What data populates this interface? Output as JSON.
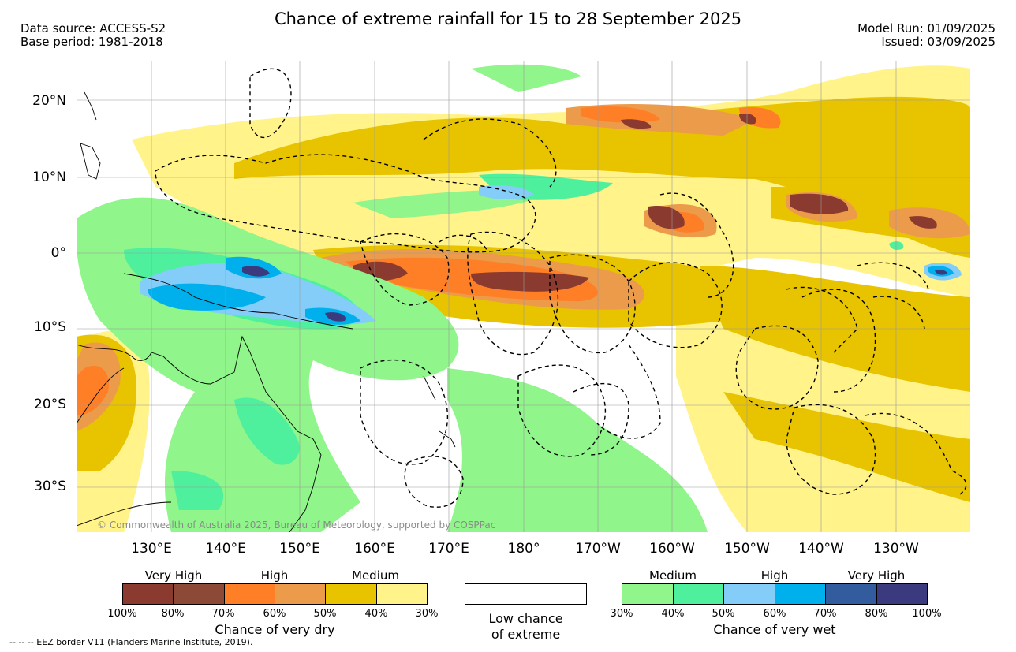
{
  "title": "Chance of extreme rainfall for 15 to 28 September 2025",
  "header": {
    "data_source": "Data source: ACCESS-S2",
    "base_period": "Base period: 1981-2018",
    "model_run": "Model Run: 01/09/2025",
    "issued": "Issued: 03/09/2025"
  },
  "map": {
    "lat_labels": [
      "20°N",
      "10°N",
      "0°",
      "10°S",
      "20°S",
      "30°S"
    ],
    "lon_labels": [
      "130°E",
      "140°E",
      "150°E",
      "160°E",
      "170°E",
      "180°",
      "170°W",
      "160°W",
      "150°W",
      "140°W",
      "130°W"
    ],
    "copyright": "© Commonwealth of Australia 2025, Bureau of Meteorology, supported by COSPPac"
  },
  "legend": {
    "dry": {
      "categories": [
        "Very High",
        "High",
        "Medium"
      ],
      "colors": [
        "#8b3a2f",
        "#8c4a36",
        "#ff7f27",
        "#ec9b4b",
        "#e8c300",
        "#fff38a"
      ],
      "ticks": [
        "100%",
        "80%",
        "70%",
        "60%",
        "50%",
        "40%",
        "30%"
      ],
      "caption": "Chance of very dry"
    },
    "low": {
      "caption_line1": "Low chance",
      "caption_line2": "of extreme"
    },
    "wet": {
      "categories": [
        "Medium",
        "High",
        "Very High"
      ],
      "colors": [
        "#90f58a",
        "#4ef09e",
        "#85cdf9",
        "#00b0ec",
        "#335c9e",
        "#3c3a7e"
      ],
      "ticks": [
        "30%",
        "40%",
        "50%",
        "60%",
        "70%",
        "80%",
        "100%"
      ],
      "caption": "Chance of very wet"
    }
  },
  "footer": {
    "eez_note": "--  --  -- EEZ border V11 (Flanders Marine Institute, 2019)."
  }
}
